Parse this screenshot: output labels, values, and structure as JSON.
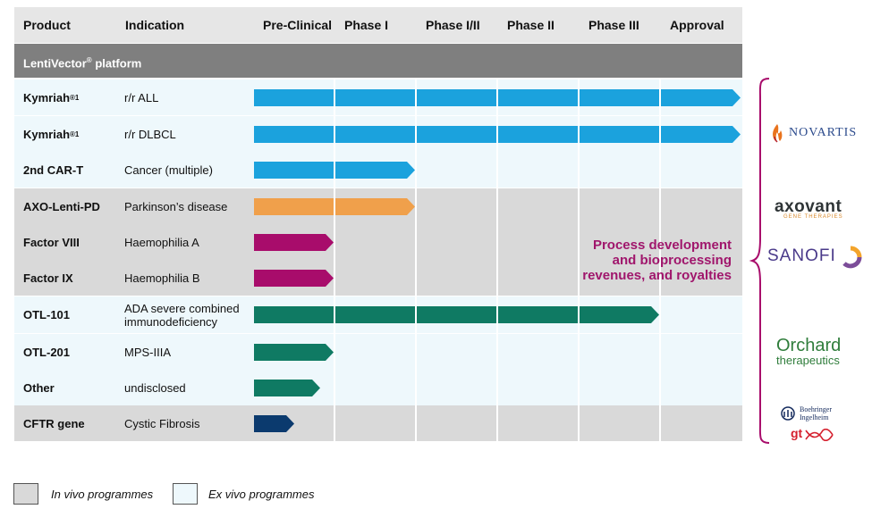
{
  "header": {
    "product": "Product",
    "indication": "Indication",
    "phases": [
      "Pre-Clinical",
      "Phase I",
      "Phase I/II",
      "Phase II",
      "Phase III",
      "Approval"
    ]
  },
  "platform": {
    "name": "LentiVector",
    "mark": "®",
    "suffix": " platform"
  },
  "rows": [
    {
      "product": "Kymriah",
      "sup": "®1",
      "indication": "r/r ALL",
      "type": "ex",
      "stage": 6,
      "color": "#1ba2dd"
    },
    {
      "product": "Kymriah",
      "sup": "®1",
      "indication": "r/r DLBCL",
      "type": "ex",
      "stage": 6,
      "color": "#1ba2dd"
    },
    {
      "product": "2nd CAR-T",
      "sup": "",
      "indication": "Cancer (multiple)",
      "type": "ex",
      "stage": 2,
      "color": "#1ba2dd"
    },
    {
      "product": "AXO-Lenti-PD",
      "sup": "",
      "indication": "Parkinson’s disease",
      "type": "in",
      "stage": 2,
      "color": "#f0a04b"
    },
    {
      "product": "Factor VIII",
      "sup": "",
      "indication": "Haemophilia A",
      "type": "in",
      "stage": 1,
      "color": "#a80c6b"
    },
    {
      "product": "Factor IX",
      "sup": "",
      "indication": "Haemophilia B",
      "type": "in",
      "stage": 1,
      "color": "#a80c6b"
    },
    {
      "product": "OTL-101",
      "sup": "",
      "indication": "ADA severe combined immunodeficiency",
      "type": "ex",
      "stage": 5,
      "color": "#0f7a63"
    },
    {
      "product": "OTL-201",
      "sup": "",
      "indication": "MPS-IIIA",
      "type": "ex",
      "stage": 1,
      "color": "#0f7a63"
    },
    {
      "product": "Other",
      "sup": "",
      "indication": "undisclosed",
      "type": "ex",
      "stage": 0.84,
      "color": "#0f7a63"
    },
    {
      "product": "CFTR gene",
      "sup": "",
      "indication": "Cystic Fibrosis",
      "type": "in",
      "stage": 0.52,
      "color": "#0b3a6e"
    }
  ],
  "note": [
    "Process development",
    "and bioprocessing",
    "revenues, and royalties"
  ],
  "partners": {
    "novartis": "NOVARTIS",
    "axovant_main": "axovant",
    "axovant_sub": "GENE THERAPIES",
    "sanofi": "SANOFI",
    "orchard_main": "Orchard",
    "orchard_sub": "therapeutics",
    "boehringer_1": "Boehringer",
    "boehringer_2": "Ingelheim",
    "gtx": "gt"
  },
  "legend": {
    "in_vivo": "In vivo programmes",
    "ex_vivo": "Ex vivo programmes"
  },
  "colors": {
    "brace": "#a80c6b",
    "note": "#a0166c"
  }
}
